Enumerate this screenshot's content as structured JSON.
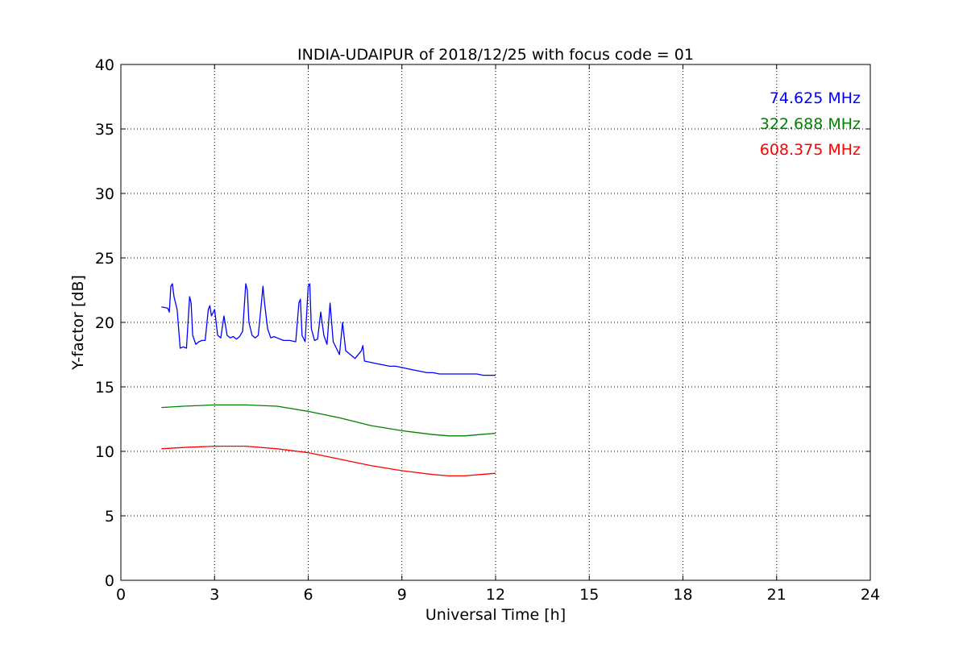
{
  "chart_data": {
    "type": "line",
    "title": "INDIA-UDAIPUR of 2018/12/25 with focus code = 01",
    "xlabel": "Universal Time [h]",
    "ylabel": "Y-factor [dB]",
    "xlim": [
      0,
      24
    ],
    "ylim": [
      0,
      40
    ],
    "xticks": [
      0,
      3,
      6,
      9,
      12,
      15,
      18,
      21,
      24
    ],
    "yticks": [
      0,
      5,
      10,
      15,
      20,
      25,
      30,
      35,
      40
    ],
    "grid": true,
    "legend_position": "top-right",
    "series": [
      {
        "name": "74.625 MHz",
        "color": "#0000ff",
        "x": [
          1.3,
          1.5,
          1.55,
          1.6,
          1.65,
          1.7,
          1.8,
          1.9,
          2.0,
          2.1,
          2.2,
          2.25,
          2.3,
          2.4,
          2.5,
          2.6,
          2.7,
          2.8,
          2.85,
          2.9,
          3.0,
          3.1,
          3.2,
          3.3,
          3.4,
          3.5,
          3.6,
          3.7,
          3.8,
          3.9,
          4.0,
          4.05,
          4.1,
          4.2,
          4.3,
          4.4,
          4.5,
          4.55,
          4.6,
          4.7,
          4.8,
          4.9,
          5.0,
          5.2,
          5.4,
          5.6,
          5.7,
          5.75,
          5.8,
          5.9,
          6.0,
          6.05,
          6.1,
          6.2,
          6.3,
          6.4,
          6.5,
          6.6,
          6.7,
          6.8,
          6.9,
          7.0,
          7.1,
          7.2,
          7.3,
          7.5,
          7.7,
          7.75,
          7.8,
          8.0,
          8.2,
          8.4,
          8.6,
          8.8,
          9.0,
          9.2,
          9.4,
          9.6,
          9.8,
          10.0,
          10.2,
          10.4,
          10.6,
          10.8,
          11.0,
          11.2,
          11.4,
          11.6,
          11.8,
          12.0
        ],
        "y": [
          21.2,
          21.1,
          20.8,
          22.8,
          23.0,
          22.0,
          21.0,
          18.0,
          18.1,
          18.0,
          22.0,
          21.5,
          19.0,
          18.3,
          18.5,
          18.6,
          18.6,
          21.0,
          21.3,
          20.5,
          21.0,
          19.0,
          18.8,
          20.5,
          19.0,
          18.8,
          18.9,
          18.7,
          18.9,
          19.3,
          23.0,
          22.5,
          20.0,
          19.0,
          18.8,
          19.0,
          21.5,
          22.8,
          21.5,
          19.5,
          18.8,
          18.9,
          18.8,
          18.6,
          18.6,
          18.5,
          21.5,
          21.8,
          19.0,
          18.5,
          22.8,
          23.0,
          19.5,
          18.6,
          18.7,
          20.8,
          19.0,
          18.3,
          21.5,
          18.5,
          18.0,
          17.5,
          20.0,
          17.8,
          17.6,
          17.2,
          17.8,
          18.2,
          17.0,
          16.9,
          16.8,
          16.7,
          16.6,
          16.6,
          16.5,
          16.4,
          16.3,
          16.2,
          16.1,
          16.1,
          16.0,
          16.0,
          16.0,
          16.0,
          16.0,
          16.0,
          16.0,
          15.9,
          15.9,
          15.9
        ]
      },
      {
        "name": "322.688 MHz",
        "color": "#008000",
        "x": [
          1.3,
          2.0,
          3.0,
          3.5,
          4.0,
          5.0,
          6.0,
          7.0,
          8.0,
          9.0,
          10.0,
          10.5,
          11.0,
          11.5,
          12.0
        ],
        "y": [
          13.4,
          13.5,
          13.6,
          13.6,
          13.6,
          13.5,
          13.1,
          12.6,
          12.0,
          11.6,
          11.3,
          11.2,
          11.2,
          11.3,
          11.4
        ]
      },
      {
        "name": "608.375 MHz",
        "color": "#ff0000",
        "x": [
          1.3,
          2.0,
          3.0,
          3.5,
          4.0,
          5.0,
          6.0,
          7.0,
          8.0,
          9.0,
          10.0,
          10.5,
          11.0,
          11.5,
          12.0
        ],
        "y": [
          10.2,
          10.3,
          10.4,
          10.4,
          10.4,
          10.2,
          9.9,
          9.4,
          8.9,
          8.5,
          8.2,
          8.1,
          8.1,
          8.2,
          8.3
        ]
      }
    ]
  }
}
